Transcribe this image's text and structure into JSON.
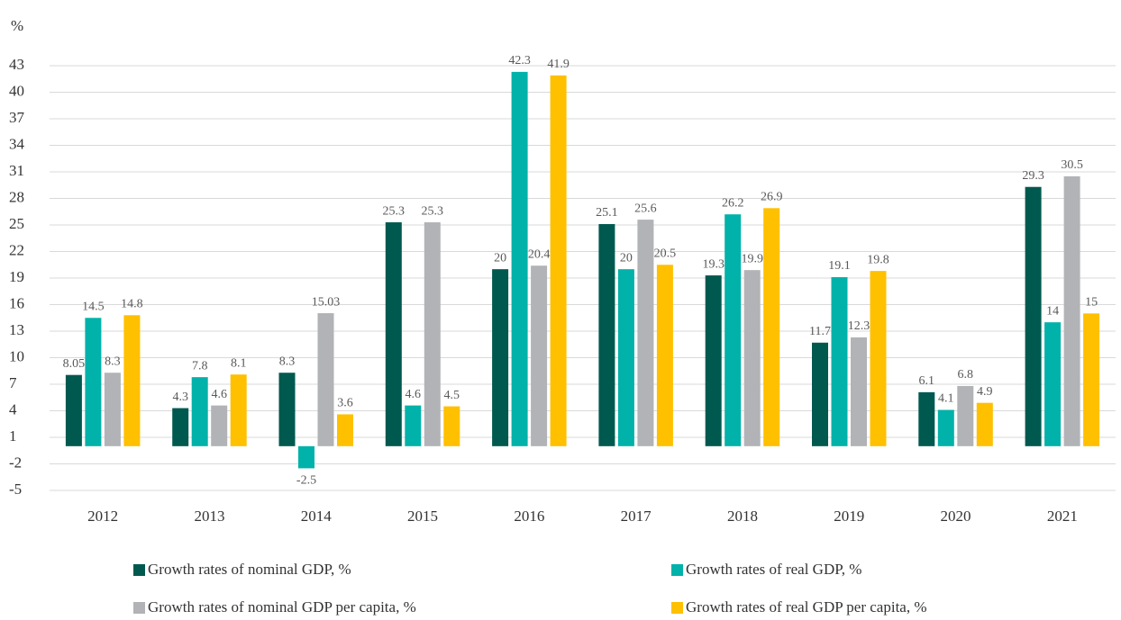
{
  "chart_data": {
    "type": "bar",
    "y_label": "%",
    "categories": [
      "2012",
      "2013",
      "2014",
      "2015",
      "2016",
      "2017",
      "2018",
      "2019",
      "2020",
      "2021"
    ],
    "series": [
      {
        "name": "Growth rates of nominal GDP, %",
        "color": "#00594f",
        "values": [
          8.05,
          4.3,
          8.3,
          25.3,
          20,
          25.1,
          19.3,
          11.7,
          6.1,
          29.3
        ]
      },
      {
        "name": "Growth rates of real GDP, %",
        "color": "#00b2a9",
        "values": [
          14.5,
          7.8,
          -2.5,
          4.6,
          42.3,
          20,
          26.2,
          19.1,
          4.1,
          14
        ]
      },
      {
        "name": "Growth rates of nominal GDP per capita, %",
        "color": "#b1b3b6",
        "values": [
          8.3,
          4.6,
          15.03,
          25.3,
          20.4,
          25.6,
          19.9,
          12.3,
          6.8,
          30.5
        ]
      },
      {
        "name": "Growth rates of real GDP per capita, %",
        "color": "#ffc000",
        "values": [
          14.8,
          8.1,
          3.6,
          4.5,
          41.9,
          20.5,
          26.9,
          19.8,
          4.9,
          15
        ]
      }
    ],
    "ylim": [
      -5,
      43
    ],
    "yticks": [
      -5,
      -2,
      1,
      4,
      7,
      10,
      13,
      16,
      19,
      22,
      25,
      28,
      31,
      34,
      37,
      40,
      43
    ],
    "grid": true,
    "legend": "bottom"
  }
}
